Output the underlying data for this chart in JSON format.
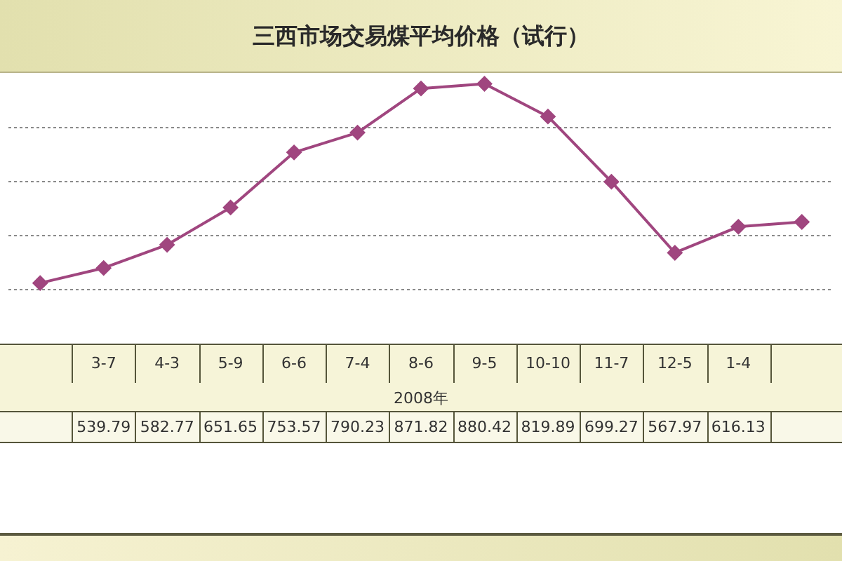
{
  "chart_data": {
    "type": "line",
    "title": "三西市场交易煤平均价格（试行）",
    "xlabel": "2008年",
    "categories": [
      null,
      "3-7",
      "4-3",
      "5-9",
      "6-6",
      "7-4",
      "8-6",
      "9-5",
      "10-10",
      "11-7",
      "12-5",
      "1-4",
      null
    ],
    "values": [
      512,
      539.79,
      582.77,
      651.65,
      753.57,
      790.23,
      871.82,
      880.42,
      819.89,
      699.27,
      567.97,
      616.13,
      625
    ],
    "value_labels": [
      null,
      "539.79",
      "582.77",
      "651.65",
      "753.57",
      "790.23",
      "871.82",
      "880.42",
      "819.89",
      "699.27",
      "567.97",
      "616.13",
      null
    ],
    "color": "#a0467f",
    "marker": "diamond",
    "line_style": "solid",
    "ylim": [
      400,
      900
    ],
    "yticks": [
      {
        "value": 500,
        "label": null
      },
      {
        "value": 600,
        "label": null
      },
      {
        "value": 700,
        "label": null
      },
      {
        "value": 800,
        "label": null
      }
    ],
    "grid": "y",
    "tick_labels": "x"
  }
}
